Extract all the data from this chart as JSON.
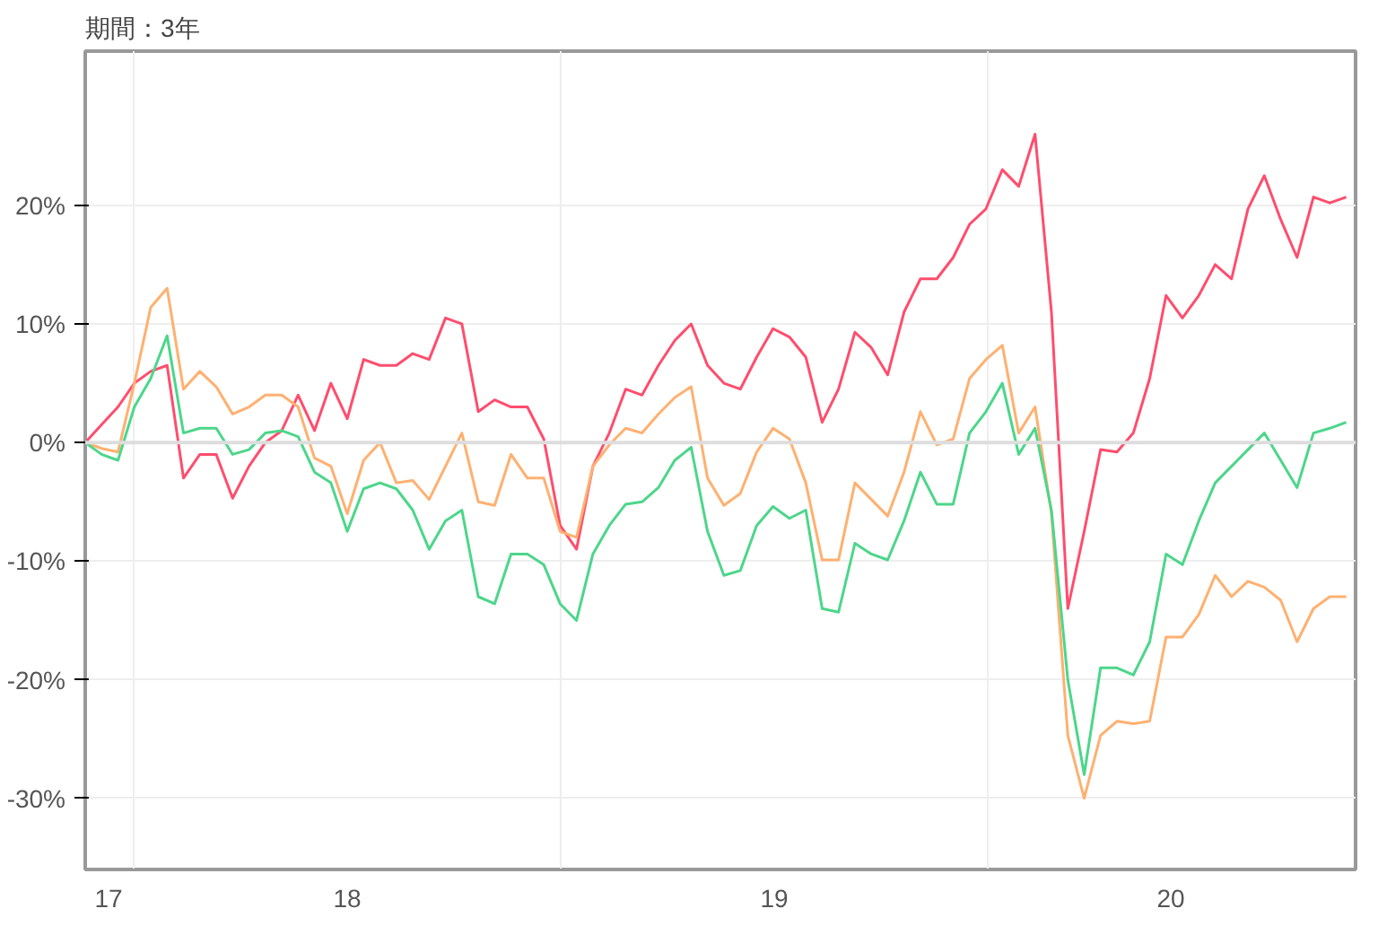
{
  "chart_data": {
    "type": "line",
    "title": "期間：3年",
    "x": [
      "2017-11-20",
      "2017-12-04",
      "2017-12-18",
      "2018-01-01",
      "2018-01-15",
      "2018-01-29",
      "2018-02-12",
      "2018-02-26",
      "2018-03-12",
      "2018-03-26",
      "2018-04-09",
      "2018-04-23",
      "2018-05-07",
      "2018-05-21",
      "2018-06-04",
      "2018-06-18",
      "2018-07-02",
      "2018-07-16",
      "2018-07-30",
      "2018-08-13",
      "2018-08-27",
      "2018-09-10",
      "2018-09-24",
      "2018-10-08",
      "2018-10-22",
      "2018-11-05",
      "2018-11-19",
      "2018-12-03",
      "2018-12-17",
      "2018-12-31",
      "2019-01-14",
      "2019-01-28",
      "2019-02-11",
      "2019-02-25",
      "2019-03-11",
      "2019-03-25",
      "2019-04-08",
      "2019-04-22",
      "2019-05-06",
      "2019-05-20",
      "2019-06-03",
      "2019-06-17",
      "2019-07-01",
      "2019-07-15",
      "2019-07-29",
      "2019-08-12",
      "2019-08-26",
      "2019-09-09",
      "2019-09-23",
      "2019-10-07",
      "2019-10-21",
      "2019-11-04",
      "2019-11-18",
      "2019-12-02",
      "2019-12-16",
      "2019-12-30",
      "2020-01-13",
      "2020-01-27",
      "2020-02-10",
      "2020-02-24",
      "2020-03-09",
      "2020-03-23",
      "2020-04-06",
      "2020-04-20",
      "2020-05-04",
      "2020-05-18",
      "2020-06-01",
      "2020-06-15",
      "2020-06-29",
      "2020-07-13",
      "2020-07-27",
      "2020-08-10",
      "2020-08-24",
      "2020-09-07",
      "2020-09-21",
      "2020-10-05",
      "2020-10-19",
      "2020-11-02"
    ],
    "series": [
      {
        "color": "#ff4d6d",
        "values": [
          0,
          1.5,
          3,
          5,
          6,
          6.5,
          -3,
          -1,
          -1,
          -4.7,
          -2,
          0,
          1,
          4,
          1,
          5,
          2,
          7,
          6.5,
          6.5,
          7.5,
          7,
          10.5,
          10,
          2.6,
          3.6,
          3,
          3,
          0.3,
          -7,
          -9,
          -2,
          0.8,
          4.5,
          4,
          6.5,
          8.6,
          10,
          6.5,
          5,
          4.5,
          7.2,
          9.6,
          8.9,
          7.2,
          1.7,
          4.5,
          9.3,
          8,
          5.7,
          11,
          13.8,
          13.8,
          15.6,
          18.4,
          19.7,
          23,
          21.6,
          26,
          11,
          -14,
          -7.5,
          -0.6,
          -0.8,
          0.8,
          5.4,
          12.4,
          10.5,
          12.4,
          15,
          13.8,
          19.7,
          22.5,
          18.8,
          15.6,
          20.7,
          20.2,
          20.7
        ]
      },
      {
        "color": "#ffb070",
        "values": [
          0,
          -0.5,
          -0.8,
          5,
          11.4,
          13,
          4.5,
          6,
          4.7,
          2.4,
          3,
          4,
          4,
          3,
          -1.3,
          -2,
          -6,
          -1.5,
          0,
          -3.4,
          -3.2,
          -4.8,
          -2,
          0.8,
          -5,
          -5.3,
          -1,
          -3,
          -3,
          -7.5,
          -8,
          -2,
          -0.2,
          1.2,
          0.8,
          2.4,
          3.8,
          4.7,
          -3,
          -5.3,
          -4.3,
          -0.8,
          1.2,
          0.3,
          -3.4,
          -9.9,
          -9.9,
          -3.4,
          -4.8,
          -6.2,
          -2.5,
          2.6,
          -0.2,
          0.3,
          5.4,
          7,
          8.2,
          0.8,
          3,
          -6,
          -24.7,
          -30,
          -24.7,
          -23.5,
          -23.7,
          -23.5,
          -16.4,
          -16.4,
          -14.5,
          -11.2,
          -13,
          -11.7,
          -12.2,
          -13.3,
          -16.8,
          -14,
          -13,
          -13
        ]
      },
      {
        "color": "#4cd68a",
        "values": [
          0,
          -1,
          -1.5,
          3,
          5.4,
          9,
          0.8,
          1.2,
          1.2,
          -1,
          -0.6,
          0.8,
          1,
          0.5,
          -2.5,
          -3.4,
          -7.5,
          -3.9,
          -3.4,
          -3.9,
          -5.7,
          -9,
          -6.6,
          -5.7,
          -13,
          -13.6,
          -9.4,
          -9.4,
          -10.3,
          -13.6,
          -15,
          -9.4,
          -7,
          -5.2,
          -5,
          -3.8,
          -1.5,
          -0.4,
          -7.5,
          -11.2,
          -10.8,
          -7,
          -5.4,
          -6.4,
          -5.7,
          -14,
          -14.3,
          -8.5,
          -9.4,
          -9.9,
          -6.6,
          -2.5,
          -5.2,
          -5.2,
          0.8,
          2.6,
          5,
          -1,
          1.2,
          -5.7,
          -20,
          -28,
          -19,
          -19,
          -19.6,
          -16.8,
          -9.4,
          -10.3,
          -6.6,
          -3.4,
          -2,
          -0.6,
          0.8,
          -1.5,
          -3.8,
          0.8,
          1.2,
          1.7
        ]
      }
    ],
    "xlim": [
      "2017-11-20",
      "2020-11-10"
    ],
    "xticks": [
      {
        "value": "2017-12-10",
        "label": "17"
      },
      {
        "value": "2018-01-01",
        "label": null
      },
      {
        "value": "2018-07-02",
        "label": "18"
      },
      {
        "value": "2019-01-01",
        "label": null
      },
      {
        "value": "2019-07-02",
        "label": "19"
      },
      {
        "value": "2020-01-01",
        "label": null
      },
      {
        "value": "2020-06-05",
        "label": "20"
      }
    ],
    "ylim": [
      -36,
      33
    ],
    "yticks": [
      {
        "value": -30,
        "label": "-30%"
      },
      {
        "value": -20,
        "label": "-20%"
      },
      {
        "value": -10,
        "label": "-10%"
      },
      {
        "value": 0,
        "label": "0%"
      },
      {
        "value": 10,
        "label": "10%"
      },
      {
        "value": 20,
        "label": "20%"
      }
    ],
    "ref_lines": [
      {
        "axis": "y",
        "value": 0,
        "color": "#dddddd"
      }
    ],
    "grid": true
  }
}
